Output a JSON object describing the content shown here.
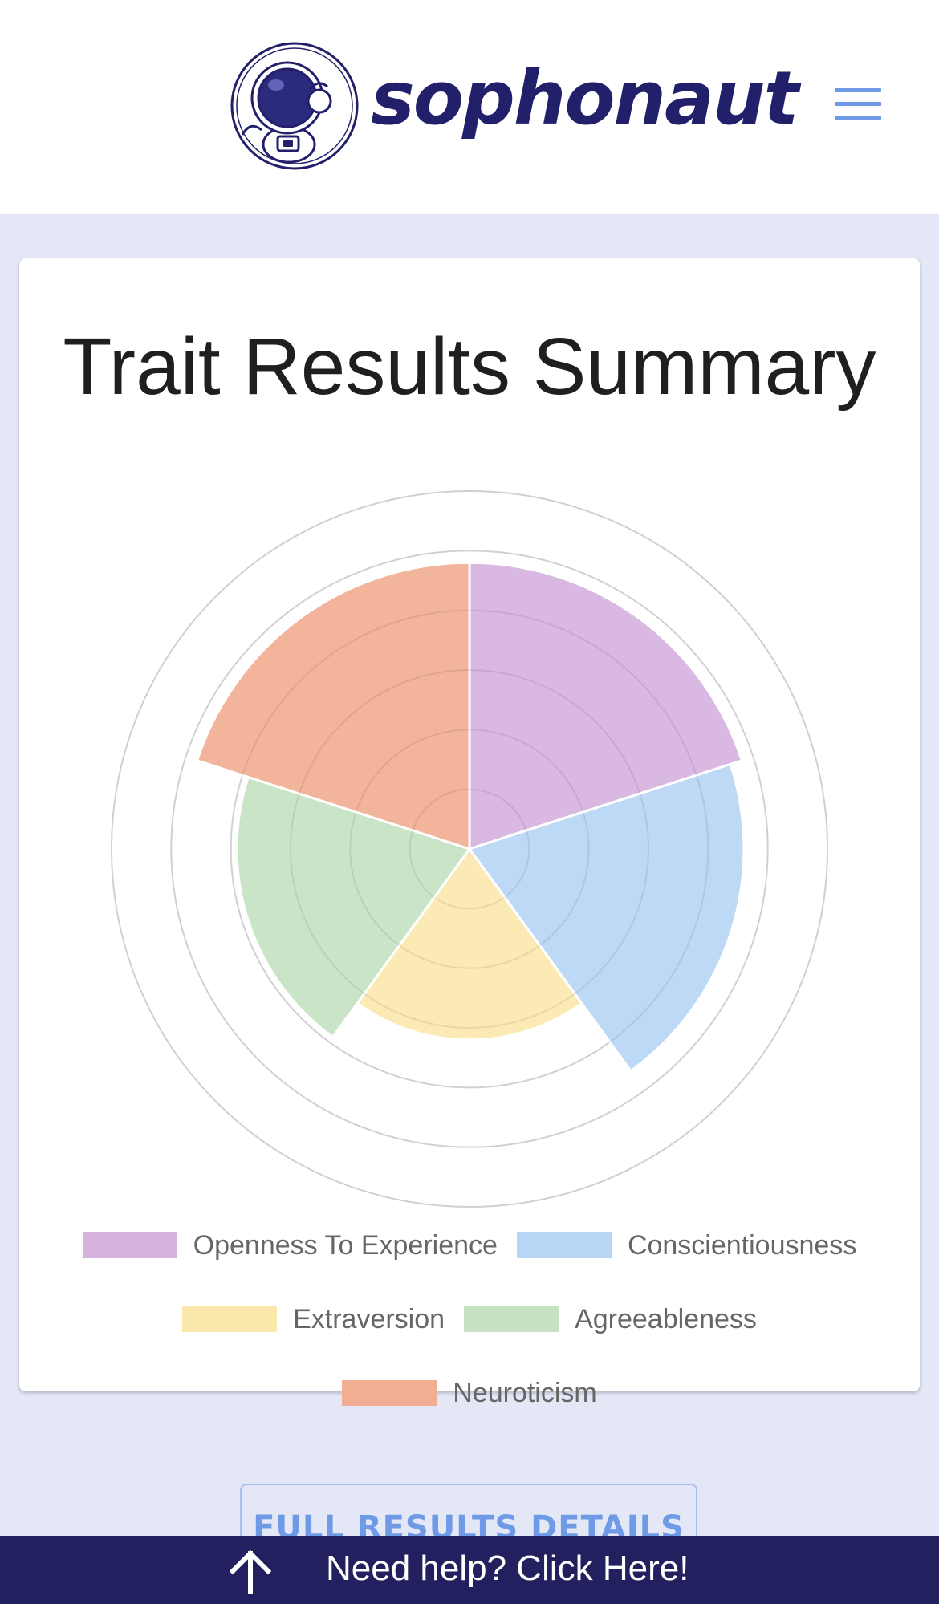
{
  "brand": {
    "name": "sophonaut",
    "colors": {
      "brand": "#22206a",
      "accent": "#6f9ae6",
      "background": "#e3e7f6",
      "help_bar": "#22205e"
    }
  },
  "header": {
    "menu_icon": "hamburger-menu-icon"
  },
  "card": {
    "title": "Trait Results Summary"
  },
  "chart_data": {
    "type": "polarArea",
    "title": "Trait Results Summary",
    "categories": [
      "Openness To Experience",
      "Conscientiousness",
      "Extraversion",
      "Agreeableness",
      "Neuroticism"
    ],
    "values": [
      4.8,
      4.6,
      3.2,
      3.9,
      4.8
    ],
    "colors": [
      "#d6b2de",
      "#b7d6f4",
      "#fbe8ad",
      "#c6e2c2",
      "#f1ae92"
    ],
    "rlim": [
      0,
      6
    ],
    "grid": true,
    "legend_position": "bottom"
  },
  "actions": {
    "full_results_label": "FULL RESULTS DETAILS",
    "help_label": "Need help? Click Here!",
    "help_icon": "arrow-up-icon"
  }
}
